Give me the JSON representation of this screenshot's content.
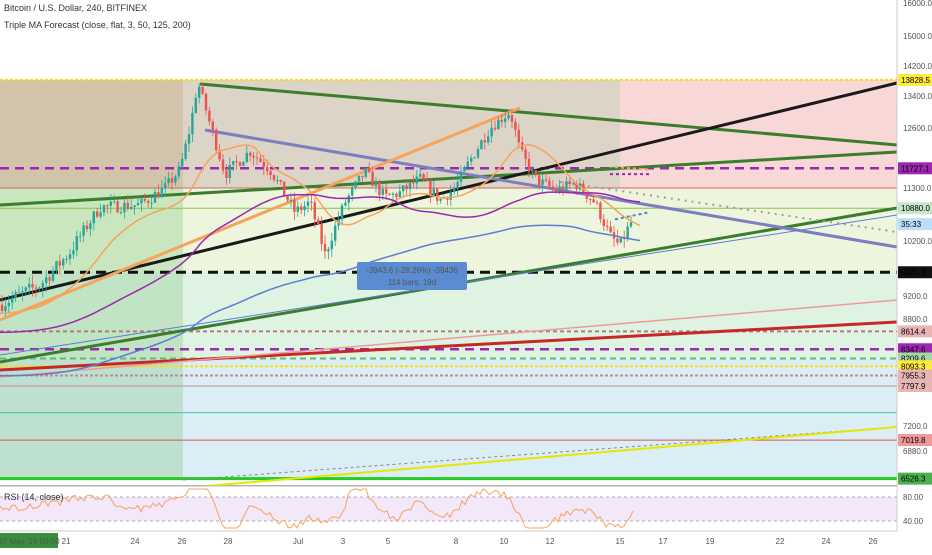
{
  "chart_data": {
    "type": "candlestick",
    "title": "Bitcoin / U.S. Dollar, 240, BITFINEX",
    "indicator_legend": "Triple MA Forecast (close, flat, 3, 50, 125, 200)",
    "rsi_legend": "RSI (14, close)",
    "price_axis": {
      "range": [
        6500,
        16400
      ],
      "ticks": [
        16000,
        15000,
        14200,
        13400,
        12600,
        11300,
        10200,
        9200,
        8800,
        7200,
        6880
      ]
    },
    "rsi_axis": {
      "ticks": [
        "80.00",
        "40.00"
      ]
    },
    "time_axis": {
      "cursor_label": "27 May '19  00:00",
      "ticks": [
        "21",
        "24",
        "26",
        "28",
        "Jul",
        "3",
        "5",
        "8",
        "10",
        "12",
        "15",
        "17",
        "19",
        "22",
        "24",
        "26"
      ]
    },
    "price_badges": [
      {
        "label": "13828.5",
        "value": 13828.5,
        "color": "#ffeb3b"
      },
      {
        "label": "11727.1",
        "value": 11727.1,
        "color": "#9c27b0",
        "text": "#ffffff"
      },
      {
        "label": "10880.0",
        "value": 10880,
        "color": "#c8e6c9"
      },
      {
        "label": "35:33",
        "value": 10550,
        "color": "#bbdefb"
      },
      {
        "label": "9631.9",
        "value": 9631.9,
        "color": "#111111",
        "text": "#ffffff"
      },
      {
        "label": "8614.4",
        "value": 8614.4,
        "color": "#e8b4b4"
      },
      {
        "label": "8347.6",
        "value": 8347.6,
        "color": "#9c27b0",
        "text": "#ffffff"
      },
      {
        "label": "8209.6",
        "value": 8209.6,
        "color": "#a5d6a7"
      },
      {
        "label": "8093.3",
        "value": 8093.3,
        "color": "#ffeb3b"
      },
      {
        "label": "7955.3",
        "value": 7955.3,
        "color": "#e8b4b4"
      },
      {
        "label": "7797.9",
        "value": 7797.9,
        "color": "#e8b4b4"
      },
      {
        "label": "7019.8",
        "value": 7019.8,
        "color": "#ef9a9a"
      },
      {
        "label": "6526.3",
        "value": 6526.3,
        "color": "#4caf50"
      }
    ],
    "measure_tool": {
      "line1": "-3943.6 (-28.26%) -39436",
      "line2": "114 bars, 19d"
    },
    "colors": {
      "up_candle": "#26a69a",
      "down_candle": "#ef5350",
      "ma_fast": "#f7a35c",
      "ma_mid": "#9c27b0",
      "ma_slow": "#5c7cd6",
      "trend_green": "#3a7d2c"
    }
  }
}
